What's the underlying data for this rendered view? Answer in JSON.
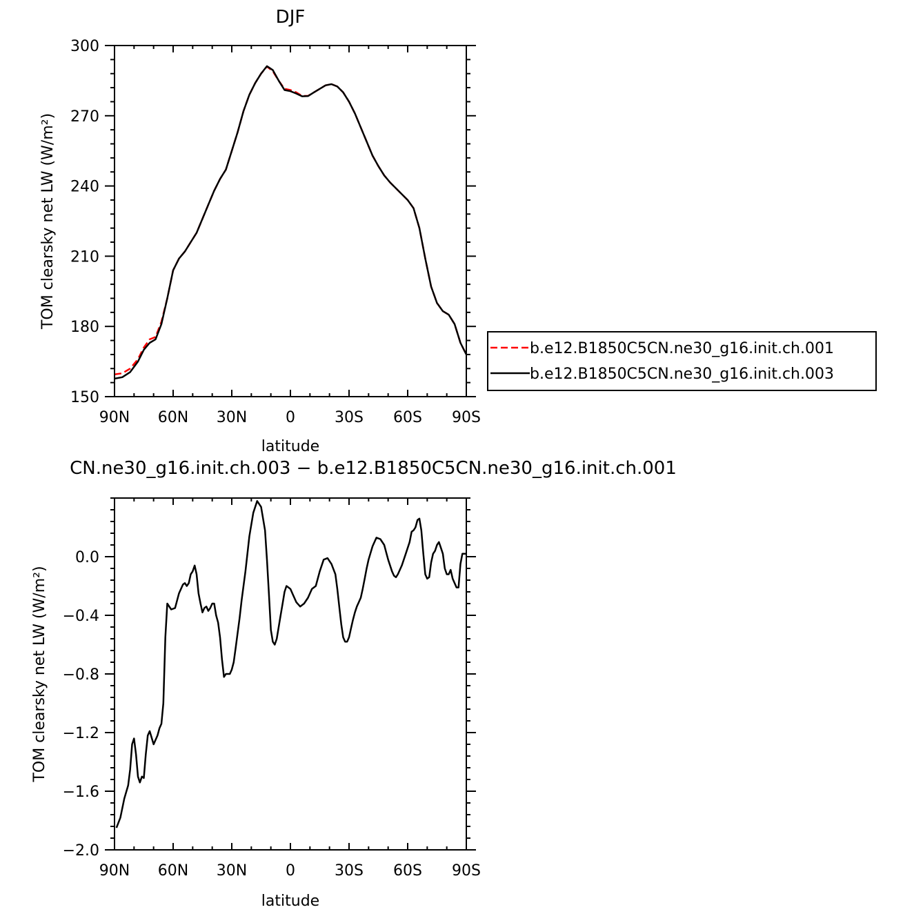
{
  "chart_data": [
    {
      "type": "line",
      "title": "DJF",
      "xlabel": "latitude",
      "ylabel": "TOM clearsky net LW (W/m²)",
      "xlim": [
        90,
        -90
      ],
      "ylim": [
        150,
        300
      ],
      "xticks": [
        90,
        60,
        30,
        0,
        -30,
        -60,
        -90
      ],
      "xtick_labels": [
        "90N",
        "60N",
        "30N",
        "0",
        "30S",
        "60S",
        "90S"
      ],
      "yticks": [
        150,
        180,
        210,
        240,
        270,
        300
      ],
      "ytick_labels": [
        "150",
        "180",
        "210",
        "240",
        "270",
        "300"
      ],
      "legend_position": "right",
      "series": [
        {
          "name": "b.e12.B1850C5CN.ne30_g16.init.ch.001",
          "color": "#ff0000",
          "dash": "dashed",
          "x": [
            90,
            86,
            82,
            78,
            75,
            72,
            69,
            66,
            63,
            60,
            57,
            54,
            51,
            48,
            45,
            42,
            39,
            36,
            33,
            30,
            27,
            24,
            21,
            18,
            15,
            12,
            9,
            6,
            3,
            0,
            -3,
            -6,
            -9,
            -12,
            -15,
            -18,
            -21,
            -24,
            -27,
            -30,
            -33,
            -36,
            -39,
            -42,
            -45,
            -48,
            -51,
            -54,
            -57,
            -60,
            -63,
            -66,
            -69,
            -72,
            -75,
            -78,
            -81,
            -84,
            -87,
            -90
          ],
          "values": [
            159.5,
            160,
            162,
            166,
            171,
            174.5,
            175.5,
            182,
            192,
            204,
            209,
            212,
            216,
            220,
            226,
            232,
            238,
            243,
            247,
            255,
            263,
            272,
            279,
            284,
            288,
            291,
            289,
            285,
            281.5,
            281,
            280,
            278.5,
            278.5,
            280,
            281.5,
            283,
            283.5,
            282.5,
            280,
            276,
            271,
            265,
            259,
            253,
            248.5,
            244.5,
            241.5,
            239,
            236.5,
            234,
            230.5,
            222,
            209,
            197,
            190,
            186.5,
            185,
            181,
            173,
            168
          ]
        },
        {
          "name": "b.e12.B1850C5CN.ne30_g16.init.ch.003",
          "color": "#000000",
          "dash": "solid",
          "x": [
            90,
            86,
            82,
            78,
            75,
            72,
            69,
            66,
            63,
            60,
            57,
            54,
            51,
            48,
            45,
            42,
            39,
            36,
            33,
            30,
            27,
            24,
            21,
            18,
            15,
            12,
            9,
            6,
            3,
            0,
            -3,
            -6,
            -9,
            -12,
            -15,
            -18,
            -21,
            -24,
            -27,
            -30,
            -33,
            -36,
            -39,
            -42,
            -45,
            -48,
            -51,
            -54,
            -57,
            -60,
            -63,
            -66,
            -69,
            -72,
            -75,
            -78,
            -81,
            -84,
            -87,
            -90
          ],
          "values": [
            157.7,
            158.3,
            160.5,
            165,
            170,
            173,
            174.5,
            181,
            192,
            204,
            209,
            212,
            216,
            220,
            226,
            232,
            238,
            243,
            247,
            255,
            263,
            272,
            279,
            284,
            288,
            291.2,
            289.5,
            285,
            281,
            280.5,
            279.5,
            278.3,
            278.4,
            280,
            281.5,
            283,
            283.5,
            282.5,
            280,
            276,
            271,
            265,
            259,
            253,
            248.5,
            244.5,
            241.5,
            239,
            236.5,
            234,
            230.5,
            222,
            209,
            197,
            190,
            186.5,
            185,
            181,
            173,
            168
          ]
        }
      ]
    },
    {
      "type": "line",
      "title": "CN.ne30_g16.init.ch.003 − b.e12.B1850C5CN.ne30_g16.init.ch.001",
      "xlabel": "latitude",
      "ylabel": "TOM clearsky net LW (W/m²)",
      "xlim": [
        90,
        -90
      ],
      "ylim": [
        -2.0,
        0.4
      ],
      "xticks": [
        90,
        60,
        30,
        0,
        -30,
        -60,
        -90
      ],
      "xtick_labels": [
        "90N",
        "60N",
        "30N",
        "0",
        "30S",
        "60S",
        "90S"
      ],
      "yticks": [
        -2.0,
        -1.6,
        -1.2,
        -0.8,
        -0.4,
        0.0
      ],
      "ytick_labels": [
        "−2.0",
        "−1.6",
        "−1.2",
        "−0.8",
        "−0.4",
        "0.0"
      ],
      "series": [
        {
          "color": "#000000",
          "x": [
            89,
            87,
            85,
            83,
            82,
            81,
            80,
            79,
            78,
            77,
            76,
            75,
            74,
            73,
            72,
            70,
            68,
            67,
            66,
            65,
            64,
            63,
            61,
            59,
            57,
            55,
            54,
            53,
            52,
            51,
            50,
            49,
            48,
            47,
            46,
            45,
            44,
            43,
            42,
            41,
            40,
            39,
            38,
            37,
            36,
            35,
            34,
            33,
            31,
            30,
            29,
            28,
            27,
            26,
            25,
            23,
            21,
            19,
            17,
            15,
            13,
            12,
            11,
            10,
            9,
            8,
            7,
            6,
            5,
            4,
            3,
            2,
            1,
            0,
            -1,
            -3,
            -5,
            -7,
            -9,
            -11,
            -13,
            -15,
            -17,
            -19,
            -21,
            -23,
            -24,
            -25,
            -26,
            -27,
            -28,
            -29,
            -30,
            -31,
            -32,
            -33,
            -34,
            -35,
            -36,
            -37,
            -38,
            -39,
            -40,
            -42,
            -44,
            -46,
            -48,
            -49,
            -50,
            -51,
            -52,
            -53,
            -54,
            -55,
            -57,
            -59,
            -61,
            -62,
            -63,
            -64,
            -65,
            -66,
            -67,
            -68,
            -69,
            -70,
            -71,
            -72,
            -73,
            -74,
            -75,
            -76,
            -77,
            -78,
            -79,
            -80,
            -81,
            -82,
            -83,
            -84,
            -85,
            -86,
            -87,
            -88,
            -89,
            -90
          ],
          "values": [
            -1.85,
            -1.78,
            -1.65,
            -1.56,
            -1.45,
            -1.28,
            -1.24,
            -1.35,
            -1.5,
            -1.54,
            -1.5,
            -1.51,
            -1.35,
            -1.22,
            -1.19,
            -1.28,
            -1.22,
            -1.17,
            -1.14,
            -1.0,
            -0.55,
            -0.32,
            -0.36,
            -0.35,
            -0.25,
            -0.19,
            -0.18,
            -0.2,
            -0.18,
            -0.12,
            -0.1,
            -0.06,
            -0.12,
            -0.25,
            -0.32,
            -0.38,
            -0.35,
            -0.34,
            -0.37,
            -0.35,
            -0.32,
            -0.32,
            -0.4,
            -0.45,
            -0.55,
            -0.7,
            -0.82,
            -0.8,
            -0.8,
            -0.77,
            -0.72,
            -0.62,
            -0.52,
            -0.42,
            -0.3,
            -0.1,
            0.14,
            0.3,
            0.38,
            0.34,
            0.18,
            -0.02,
            -0.25,
            -0.5,
            -0.58,
            -0.6,
            -0.56,
            -0.48,
            -0.4,
            -0.32,
            -0.24,
            -0.2,
            -0.21,
            -0.22,
            -0.25,
            -0.31,
            -0.34,
            -0.32,
            -0.28,
            -0.22,
            -0.2,
            -0.1,
            -0.02,
            -0.01,
            -0.05,
            -0.12,
            -0.22,
            -0.34,
            -0.46,
            -0.55,
            -0.58,
            -0.58,
            -0.55,
            -0.49,
            -0.43,
            -0.38,
            -0.34,
            -0.31,
            -0.28,
            -0.22,
            -0.15,
            -0.08,
            -0.02,
            0.07,
            0.13,
            0.12,
            0.08,
            0.03,
            -0.02,
            -0.06,
            -0.1,
            -0.13,
            -0.14,
            -0.12,
            -0.06,
            0.02,
            0.1,
            0.17,
            0.18,
            0.2,
            0.25,
            0.26,
            0.18,
            0.02,
            -0.12,
            -0.15,
            -0.14,
            -0.04,
            0.02,
            0.04,
            0.08,
            0.1,
            0.06,
            0.02,
            -0.08,
            -0.12,
            -0.12,
            -0.09,
            -0.15,
            -0.18,
            -0.21,
            -0.21,
            -0.05,
            0.02,
            0.02,
            0.02
          ]
        }
      ]
    }
  ]
}
